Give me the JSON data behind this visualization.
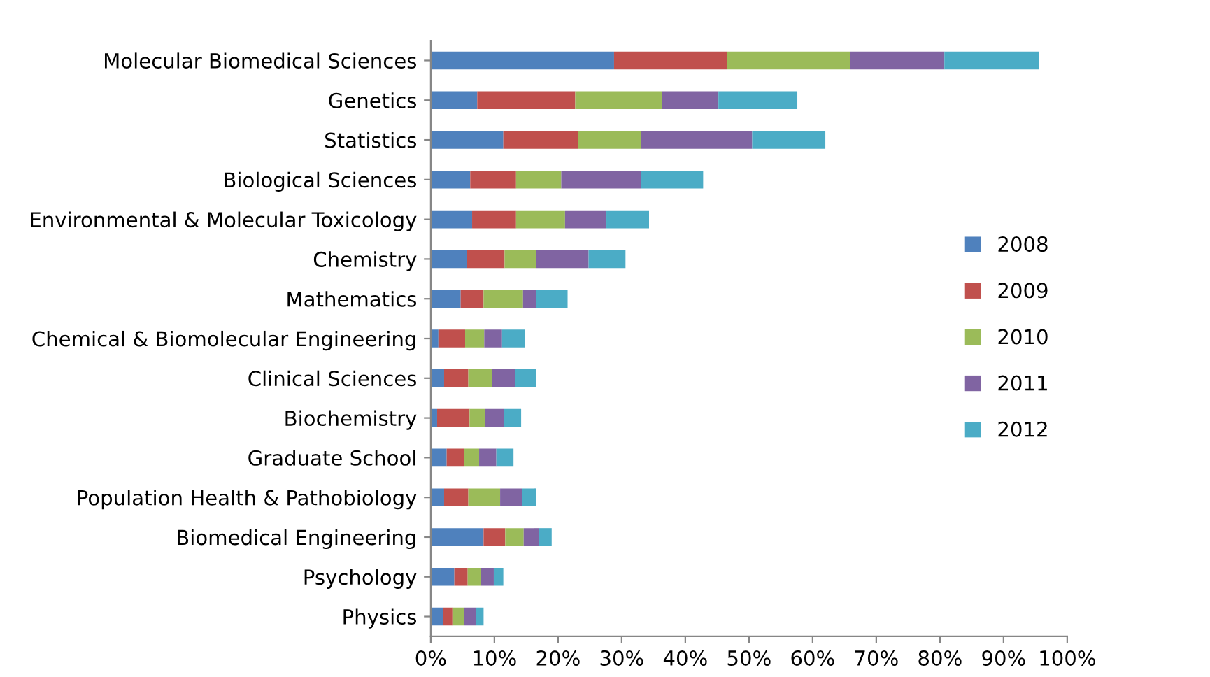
{
  "chart_data": {
    "type": "bar",
    "orientation": "horizontal",
    "stacked": true,
    "categories": [
      "Molecular Biomedical Sciences",
      "Genetics",
      "Statistics",
      "Biological Sciences",
      "Environmental & Molecular Toxicology",
      "Chemistry",
      "Mathematics",
      "Chemical & Biomolecular Engineering",
      "Clinical Sciences",
      "Biochemistry",
      "Graduate School",
      "Population Health & Pathobiology",
      "Biomedical Engineering",
      "Psychology",
      "Physics"
    ],
    "series": [
      {
        "name": "2008",
        "color": "#4f81bd",
        "values": [
          28.8,
          7.3,
          11.4,
          6.2,
          6.5,
          5.7,
          4.7,
          1.2,
          2.1,
          1.0,
          2.5,
          2.1,
          8.3,
          3.7,
          1.9
        ]
      },
      {
        "name": "2009",
        "color": "#c0504d",
        "values": [
          17.7,
          15.4,
          11.7,
          7.2,
          6.9,
          5.9,
          3.6,
          4.2,
          3.8,
          5.1,
          2.7,
          3.8,
          3.4,
          2.1,
          1.5
        ]
      },
      {
        "name": "2010",
        "color": "#9bbb59",
        "values": [
          19.4,
          13.6,
          9.9,
          7.1,
          7.7,
          5.0,
          6.2,
          3.0,
          3.7,
          2.4,
          2.4,
          5.0,
          2.9,
          2.1,
          1.8
        ]
      },
      {
        "name": "2011",
        "color": "#8064a2",
        "values": [
          14.8,
          8.9,
          17.5,
          12.5,
          6.5,
          8.2,
          2.0,
          2.8,
          3.6,
          3.0,
          2.7,
          3.4,
          2.4,
          2.0,
          1.9
        ]
      },
      {
        "name": "2012",
        "color": "#4bacc6",
        "values": [
          14.9,
          12.4,
          11.5,
          9.8,
          6.7,
          5.8,
          5.0,
          3.6,
          3.4,
          2.7,
          2.7,
          2.3,
          2.0,
          1.5,
          1.2
        ]
      }
    ],
    "xlim": [
      0,
      100
    ],
    "xticks": [
      {
        "value": 0,
        "label": "0%"
      },
      {
        "value": 10,
        "label": "10%"
      },
      {
        "value": 20,
        "label": "20%"
      },
      {
        "value": 30,
        "label": "30%"
      },
      {
        "value": 40,
        "label": "40%"
      },
      {
        "value": 50,
        "label": "50%"
      },
      {
        "value": 60,
        "label": "60%"
      },
      {
        "value": 70,
        "label": "70%"
      },
      {
        "value": 80,
        "label": "80%"
      },
      {
        "value": 90,
        "label": "90%"
      },
      {
        "value": 100,
        "label": "100%"
      }
    ],
    "grid": false,
    "legend": "right"
  }
}
